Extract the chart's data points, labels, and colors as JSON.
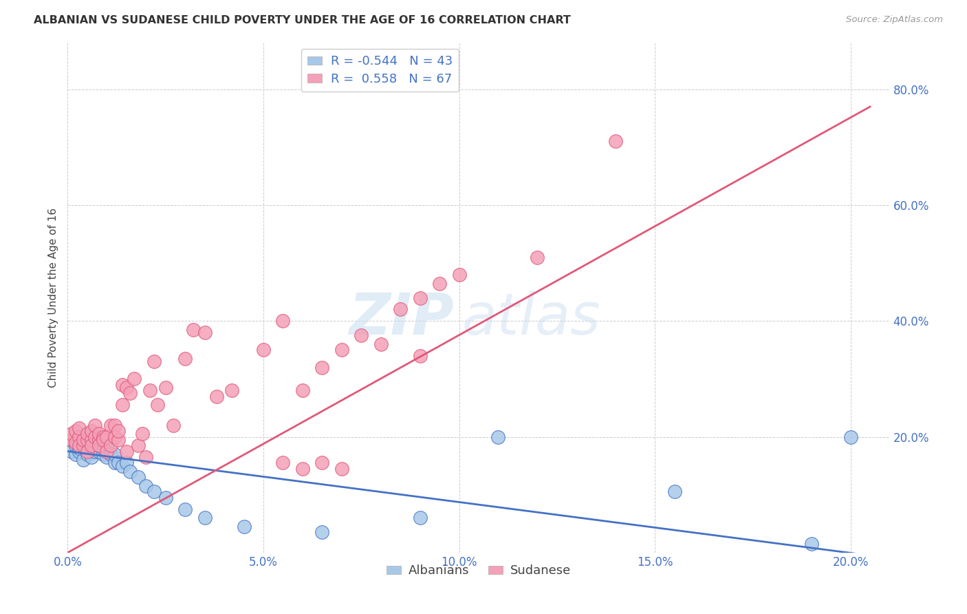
{
  "title": "ALBANIAN VS SUDANESE CHILD POVERTY UNDER THE AGE OF 16 CORRELATION CHART",
  "source": "Source: ZipAtlas.com",
  "ylabel": "Child Poverty Under the Age of 16",
  "xlim": [
    0.0,
    0.21
  ],
  "ylim": [
    0.0,
    0.88
  ],
  "xtick_values": [
    0.0,
    0.05,
    0.1,
    0.15,
    0.2
  ],
  "xtick_labels": [
    "0.0%",
    "5.0%",
    "10.0%",
    "15.0%",
    "20.0%"
  ],
  "ytick_values": [
    0.2,
    0.4,
    0.6,
    0.8
  ],
  "ytick_labels": [
    "20.0%",
    "40.0%",
    "60.0%",
    "80.0%"
  ],
  "albanian_color": "#a8c8e8",
  "sudanese_color": "#f4a0b8",
  "albanian_line_color": "#4472c4",
  "sudanese_line_color": "#e05878",
  "albanian_R": -0.544,
  "albanian_N": 43,
  "sudanese_R": 0.558,
  "sudanese_N": 67,
  "watermark_zip": "ZIP",
  "watermark_atlas": "atlas",
  "background_color": "#ffffff",
  "legend_border_color": "#cccccc",
  "grid_color": "#cccccc",
  "alb_line_x0": 0.0,
  "alb_line_y0": 0.175,
  "alb_line_x1": 0.205,
  "alb_line_y1": -0.005,
  "sud_line_x0": 0.0,
  "sud_line_y0": 0.0,
  "sud_line_x1": 0.205,
  "sud_line_y1": 0.77,
  "albanian_x": [
    0.001,
    0.001,
    0.002,
    0.002,
    0.002,
    0.003,
    0.003,
    0.004,
    0.004,
    0.005,
    0.005,
    0.005,
    0.006,
    0.006,
    0.007,
    0.007,
    0.007,
    0.008,
    0.008,
    0.009,
    0.009,
    0.01,
    0.01,
    0.011,
    0.012,
    0.012,
    0.013,
    0.014,
    0.015,
    0.016,
    0.018,
    0.02,
    0.022,
    0.025,
    0.03,
    0.035,
    0.045,
    0.065,
    0.09,
    0.11,
    0.155,
    0.19,
    0.2
  ],
  "albanian_y": [
    0.175,
    0.195,
    0.17,
    0.185,
    0.2,
    0.175,
    0.18,
    0.16,
    0.19,
    0.17,
    0.185,
    0.2,
    0.175,
    0.165,
    0.185,
    0.175,
    0.195,
    0.175,
    0.185,
    0.17,
    0.18,
    0.185,
    0.165,
    0.17,
    0.155,
    0.17,
    0.155,
    0.15,
    0.155,
    0.14,
    0.13,
    0.115,
    0.105,
    0.095,
    0.075,
    0.06,
    0.045,
    0.035,
    0.06,
    0.2,
    0.105,
    0.015,
    0.2
  ],
  "sudanese_x": [
    0.001,
    0.001,
    0.002,
    0.002,
    0.003,
    0.003,
    0.003,
    0.004,
    0.004,
    0.005,
    0.005,
    0.005,
    0.006,
    0.006,
    0.006,
    0.007,
    0.007,
    0.008,
    0.008,
    0.008,
    0.009,
    0.009,
    0.01,
    0.01,
    0.011,
    0.011,
    0.012,
    0.012,
    0.013,
    0.013,
    0.014,
    0.014,
    0.015,
    0.015,
    0.016,
    0.017,
    0.018,
    0.019,
    0.02,
    0.021,
    0.022,
    0.023,
    0.025,
    0.027,
    0.03,
    0.032,
    0.035,
    0.038,
    0.042,
    0.05,
    0.055,
    0.06,
    0.065,
    0.07,
    0.075,
    0.08,
    0.085,
    0.09,
    0.095,
    0.1,
    0.12,
    0.14,
    0.055,
    0.06,
    0.065,
    0.07,
    0.09
  ],
  "sudanese_y": [
    0.195,
    0.205,
    0.19,
    0.21,
    0.2,
    0.185,
    0.215,
    0.185,
    0.195,
    0.195,
    0.205,
    0.175,
    0.195,
    0.21,
    0.185,
    0.2,
    0.22,
    0.195,
    0.185,
    0.205,
    0.2,
    0.195,
    0.175,
    0.2,
    0.22,
    0.185,
    0.22,
    0.2,
    0.195,
    0.21,
    0.29,
    0.255,
    0.285,
    0.175,
    0.275,
    0.3,
    0.185,
    0.205,
    0.165,
    0.28,
    0.33,
    0.255,
    0.285,
    0.22,
    0.335,
    0.385,
    0.38,
    0.27,
    0.28,
    0.35,
    0.4,
    0.28,
    0.32,
    0.35,
    0.375,
    0.36,
    0.42,
    0.44,
    0.465,
    0.48,
    0.51,
    0.71,
    0.155,
    0.145,
    0.155,
    0.145,
    0.34
  ]
}
